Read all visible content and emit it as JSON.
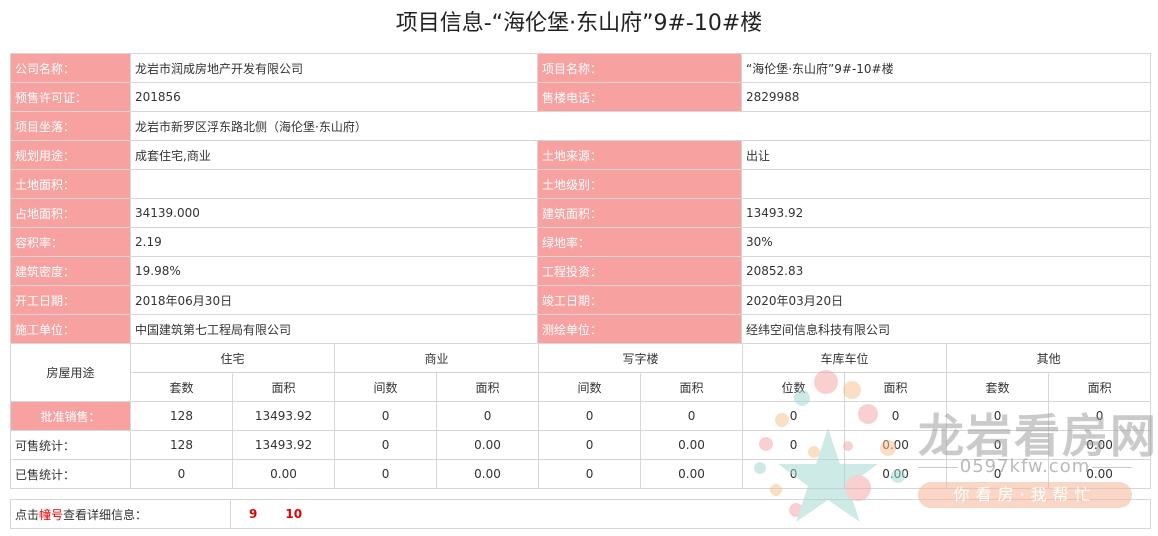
{
  "page_title": "项目信息-“海伦堡·东山府”9#-10#楼",
  "info": {
    "company_label": "公司名称：",
    "company": "龙岩市润成房地产开发有限公司",
    "project_label": "项目名称：",
    "project": "“海伦堡·东山府”9#-10#楼",
    "permit_label": "预售许可证：",
    "permit": "201856",
    "phone_label": "售楼电话：",
    "phone": "2829988",
    "location_label": "项目坐落：",
    "location": "龙岩市新罗区浮东路北侧（海伦堡·东山府）",
    "use_label": "规划用途：",
    "use": "成套住宅,商业",
    "land_source_label": "土地来源：",
    "land_source": "出让",
    "land_area_label": "土地面积：",
    "land_area": "",
    "land_grade_label": "土地级别：",
    "land_grade": "",
    "site_area_label": "占地面积：",
    "site_area": "34139.000",
    "build_area_label": "建筑面积：",
    "build_area": "13493.92",
    "far_label": "容积率：",
    "far": "2.19",
    "green_label": "绿地率：",
    "green": "30%",
    "density_label": "建筑密度：",
    "density": "19.98%",
    "investment_label": "工程投资：",
    "investment": "20852.83",
    "start_label": "开工日期：",
    "start": "2018年06月30日",
    "finish_label": "竣工日期：",
    "finish": "2020年03月20日",
    "contractor_label": "施工单位：",
    "contractor": "中国建筑第七工程局有限公司",
    "surveyor_label": "测绘单位：",
    "surveyor": "经纬空间信息科技有限公司"
  },
  "units": {
    "corner": "房屋用途",
    "groups": [
      "住宅",
      "商业",
      "写字楼",
      "车库车位",
      "其他"
    ],
    "subheaders": [
      "套数",
      "面积",
      "间数",
      "面积",
      "间数",
      "面积",
      "位数",
      "面积",
      "套数",
      "面积"
    ],
    "rows": [
      {
        "label": "批准销售：",
        "values": [
          "128",
          "13493.92",
          "0",
          "0",
          "0",
          "0",
          "0",
          "0",
          "0",
          "0"
        ]
      },
      {
        "label": "可售统计：",
        "values": [
          "128",
          "13493.92",
          "0",
          "0.00",
          "0",
          "0.00",
          "0",
          "0.00",
          "0",
          "0.00"
        ]
      },
      {
        "label": "已售统计：",
        "values": [
          "0",
          "0.00",
          "0",
          "0.00",
          "0",
          "0.00",
          "0",
          "0.00",
          "0",
          "0.00"
        ]
      }
    ]
  },
  "buildings": {
    "prompt_pre": "点击",
    "prompt_hl": "幢号",
    "prompt_post": "查看详细信息：",
    "links": [
      "9",
      "10"
    ]
  },
  "watermark": {
    "brand": "龙岩看房网",
    "domain": "0597kfw.com",
    "slogan": "你看房·我帮忙"
  }
}
